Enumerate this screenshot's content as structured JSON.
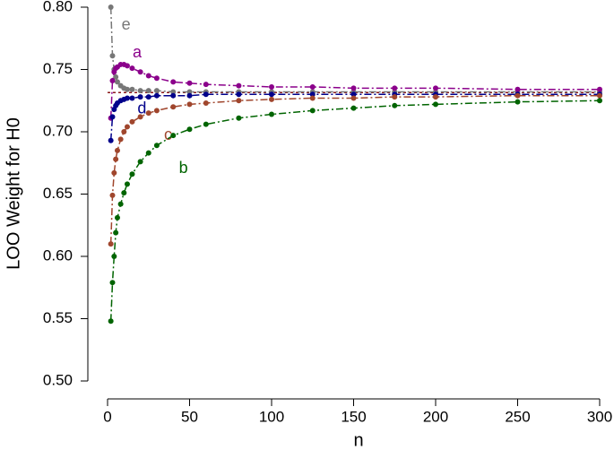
{
  "chart_data": {
    "type": "scatter",
    "x_label": "n",
    "y_label": "LOO Weight for H0",
    "xlim": [
      0,
      300
    ],
    "ylim": [
      0.5,
      0.8
    ],
    "xticks": [
      0,
      50,
      100,
      150,
      200,
      250,
      300
    ],
    "yticks": [
      {
        "value": 0.5,
        "label": "0.50"
      },
      {
        "value": 0.55,
        "label": "0.55"
      },
      {
        "value": 0.6,
        "label": "0.60"
      },
      {
        "value": 0.65,
        "label": "0.65"
      },
      {
        "value": 0.7,
        "label": "0.70"
      },
      {
        "value": 0.75,
        "label": "0.75"
      },
      {
        "value": 0.8,
        "label": "0.80"
      }
    ],
    "reference_line": {
      "value": 0.7315,
      "color": "#8b1a1a"
    },
    "x": [
      2,
      3,
      4,
      5,
      6,
      8,
      10,
      12,
      15,
      20,
      25,
      30,
      40,
      50,
      60,
      80,
      100,
      125,
      150,
      175,
      200,
      250,
      300
    ],
    "series": [
      {
        "name": "e",
        "color": "#777777",
        "values": [
          0.8,
          0.761,
          0.75,
          0.744,
          0.74,
          0.737,
          0.735,
          0.734,
          0.734,
          0.733,
          0.733,
          0.733,
          0.732,
          0.732,
          0.732,
          0.732,
          0.732,
          0.732,
          0.732,
          0.732,
          0.732,
          0.732,
          0.732
        ]
      },
      {
        "name": "a",
        "color": "#8b008b",
        "values": [
          0.711,
          0.741,
          0.748,
          0.751,
          0.752,
          0.754,
          0.754,
          0.753,
          0.751,
          0.748,
          0.745,
          0.743,
          0.74,
          0.739,
          0.738,
          0.737,
          0.736,
          0.736,
          0.735,
          0.735,
          0.735,
          0.734,
          0.734
        ]
      },
      {
        "name": "d",
        "color": "#00008b",
        "values": [
          0.693,
          0.712,
          0.718,
          0.721,
          0.723,
          0.725,
          0.726,
          0.727,
          0.727,
          0.728,
          0.728,
          0.729,
          0.729,
          0.729,
          0.73,
          0.73,
          0.73,
          0.73,
          0.73,
          0.73,
          0.73,
          0.73,
          0.73
        ]
      },
      {
        "name": "c",
        "color": "#a0462d",
        "values": [
          0.61,
          0.649,
          0.667,
          0.678,
          0.685,
          0.694,
          0.7,
          0.704,
          0.708,
          0.712,
          0.715,
          0.717,
          0.72,
          0.722,
          0.723,
          0.725,
          0.726,
          0.727,
          0.727,
          0.728,
          0.728,
          0.729,
          0.729
        ]
      },
      {
        "name": "b",
        "color": "#006400",
        "values": [
          0.548,
          0.579,
          0.6,
          0.619,
          0.631,
          0.642,
          0.651,
          0.658,
          0.666,
          0.676,
          0.683,
          0.689,
          0.697,
          0.702,
          0.706,
          0.711,
          0.714,
          0.717,
          0.719,
          0.721,
          0.722,
          0.724,
          0.725
        ]
      }
    ]
  }
}
